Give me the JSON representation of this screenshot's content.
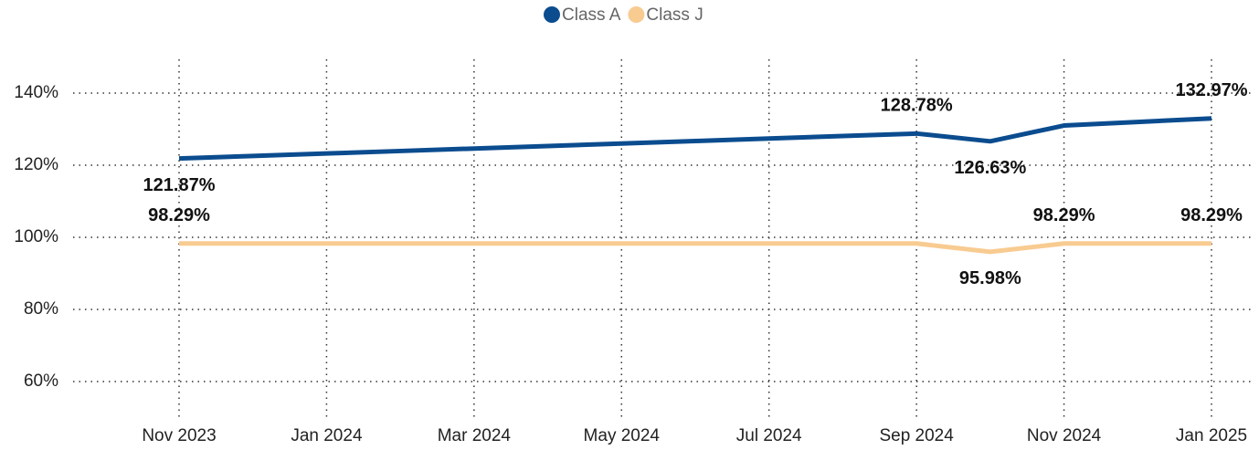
{
  "chart_data": {
    "type": "line",
    "x": [
      "2023-11",
      "2023-12",
      "2024-01",
      "2024-02",
      "2024-03",
      "2024-04",
      "2024-05",
      "2024-06",
      "2024-07",
      "2024-08",
      "2024-09",
      "2024-10",
      "2024-11",
      "2024-12",
      "2025-01"
    ],
    "series": [
      {
        "name": "Class A",
        "color": "#0b4c8f",
        "values": [
          121.87,
          122.56,
          123.25,
          123.94,
          124.63,
          125.32,
          126.02,
          126.71,
          127.4,
          128.09,
          128.78,
          126.63,
          131.0,
          132.0,
          132.97
        ],
        "value_labels": [
          "121.87%",
          null,
          null,
          null,
          null,
          null,
          null,
          null,
          null,
          null,
          "128.78%",
          "126.63%",
          null,
          null,
          "132.97%"
        ]
      },
      {
        "name": "Class J",
        "color": "#f8cb91",
        "values": [
          98.29,
          98.29,
          98.29,
          98.29,
          98.29,
          98.29,
          98.29,
          98.29,
          98.29,
          98.29,
          98.29,
          95.98,
          98.29,
          98.29,
          98.29
        ],
        "value_labels": [
          "98.29%",
          null,
          null,
          null,
          null,
          null,
          null,
          null,
          null,
          null,
          null,
          "95.98%",
          "98.29%",
          null,
          "98.29%"
        ]
      }
    ],
    "ylim": [
      50,
      150
    ],
    "yticks": [
      {
        "value": 60,
        "label": "60%"
      },
      {
        "value": 80,
        "label": "80%"
      },
      {
        "value": 100,
        "label": "100%"
      },
      {
        "value": 120,
        "label": "120%"
      },
      {
        "value": 140,
        "label": "140%"
      }
    ],
    "xticks": [
      {
        "value": "2023-11",
        "label": "Nov 2023"
      },
      {
        "value": "2024-01",
        "label": "Jan 2024"
      },
      {
        "value": "2024-03",
        "label": "Mar 2024"
      },
      {
        "value": "2024-05",
        "label": "May 2024"
      },
      {
        "value": "2024-07",
        "label": "Jul 2024"
      },
      {
        "value": "2024-09",
        "label": "Sep 2024"
      },
      {
        "value": "2024-11",
        "label": "Nov 2024"
      },
      {
        "value": "2025-01",
        "label": "Jan 2025"
      }
    ],
    "grid": true,
    "legend": "top"
  }
}
